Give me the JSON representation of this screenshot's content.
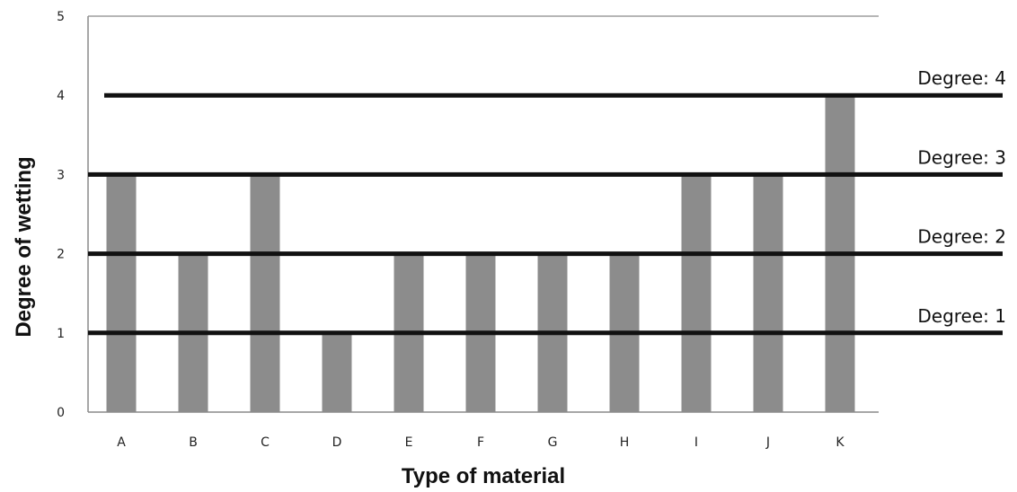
{
  "chart_data": {
    "type": "bar",
    "title": "",
    "xlabel": "Type of material",
    "ylabel": "Degree of wetting",
    "ylim": [
      0,
      5
    ],
    "yticks": [
      0,
      1,
      2,
      3,
      4,
      5
    ],
    "grid": false,
    "categories": [
      "A",
      "B",
      "C",
      "D",
      "E",
      "F",
      "G",
      "H",
      "I",
      "J",
      "K"
    ],
    "values": [
      3,
      2,
      3,
      1,
      2,
      2,
      2,
      2,
      3,
      3,
      4
    ],
    "bar_color": "#8c8c8c",
    "reference_lines": [
      {
        "label": "Degree: 1",
        "y": 1
      },
      {
        "label": "Degree: 2",
        "y": 2
      },
      {
        "label": "Degree: 3",
        "y": 3
      },
      {
        "label": "Degree: 4",
        "y": 4
      }
    ],
    "reference_line_color": "#111111"
  }
}
